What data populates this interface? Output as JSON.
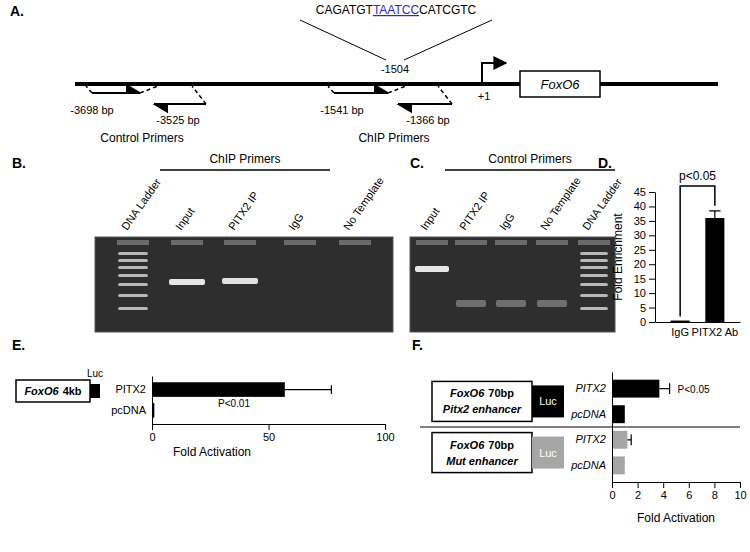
{
  "panel_labels": [
    "A.",
    "B.",
    "C.",
    "D.",
    "E.",
    "F."
  ],
  "diagram": {
    "sequence": [
      "CAGATGT",
      "TAATCC",
      "CATCGTC"
    ],
    "site": "-1504",
    "tss": "+1",
    "gene": "FoxO6",
    "control_primers": {
      "label": "Control Primers",
      "forward": "-3698 bp",
      "reverse": "-3525 bp"
    },
    "chip_primers": {
      "label": "ChIP Primers",
      "forward": "-1541 bp",
      "reverse": "-1366 bp"
    }
  },
  "gels": [
    {
      "title": "ChIP Primers",
      "lanes": [
        "DNA Ladder",
        "Input",
        "PITX2 IP",
        "IgG",
        "No Template"
      ]
    },
    {
      "title": "Control Primers",
      "lanes": [
        "Input",
        "PITX2 IP",
        "IgG",
        "No Template",
        "DNA Ladder"
      ]
    }
  ],
  "constructs": [
    {
      "gene": "FoxO6",
      "size": "4kb",
      "reporter": "Luc"
    },
    {
      "gene": "FoxO6",
      "size": "70bp",
      "element": "Pitx2 enhancer",
      "reporter": "Luc"
    },
    {
      "gene": "FoxO6",
      "size": "70bp",
      "element": "Mut enhancer",
      "reporter": "Luc"
    }
  ],
  "chart_data": [
    {
      "type": "bar",
      "categories": [
        "IgG",
        "PITX2 Ab"
      ],
      "values": [
        0.5,
        36
      ],
      "errors": [
        null,
        2.5
      ],
      "color": "#000000",
      "ylim": [
        0,
        45
      ],
      "yticks": [
        0,
        5,
        10,
        15,
        20,
        25,
        30,
        35,
        40,
        45
      ],
      "y_label": "Fold Enrichment",
      "annotation": "p<0.05"
    },
    {
      "type": "bar",
      "orientation": "horizontal",
      "categories": [
        "PITX2",
        "pcDNA"
      ],
      "values": [
        57,
        1
      ],
      "errors": [
        20,
        null
      ],
      "color": "#000000",
      "xlim": [
        0,
        100
      ],
      "xticks": [
        0,
        50,
        100
      ],
      "x_label": "Fold Activation",
      "annotation": "P<0.01"
    },
    {
      "type": "bar",
      "orientation": "horizontal",
      "categories": [
        "PITX2",
        "pcDNA",
        "PITX2",
        "pcDNA"
      ],
      "values": [
        3.7,
        1,
        1.2,
        1
      ],
      "errors": [
        0.8,
        null,
        0.3,
        null
      ],
      "colors": [
        "#000000",
        "#000000",
        "#a6a6a6",
        "#a6a6a6"
      ],
      "xlim": [
        0,
        10
      ],
      "xticks": [
        0,
        2,
        4,
        6,
        8,
        10
      ],
      "x_label": "Fold Activation",
      "annotation": "P<0.05"
    }
  ]
}
